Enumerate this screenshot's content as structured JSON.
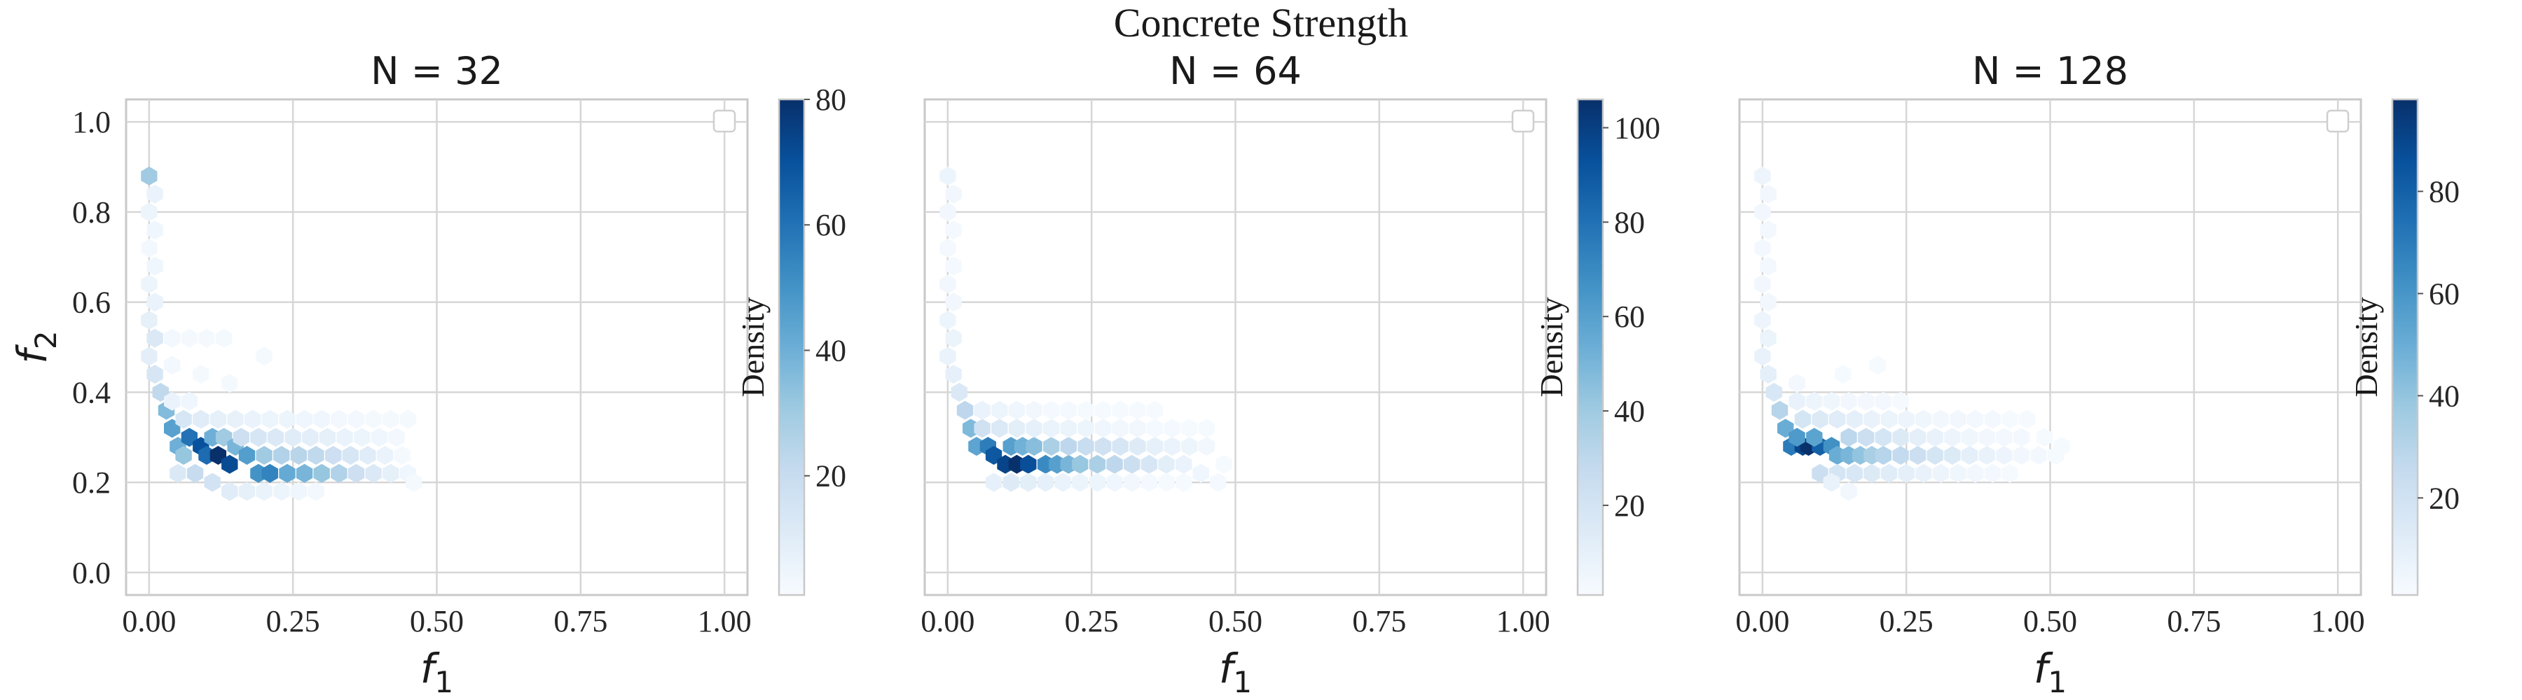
{
  "suptitle": "Concrete Strength",
  "colorbar_label": "Density",
  "x_axis": {
    "label": "f",
    "label_sub": "1"
  },
  "y_axis": {
    "label": "f",
    "label_sub": "2"
  },
  "colormap": "Blues",
  "colors": {
    "light": "#f7fbff",
    "dark": "#08306b",
    "grid": "#d6d6d6",
    "frame": "#c8c8c8"
  },
  "chart_data": [
    {
      "type": "heatmap",
      "subtype": "hexbin",
      "title": "N = 32",
      "xlim": [
        -0.04,
        1.04
      ],
      "ylim": [
        -0.05,
        1.05
      ],
      "xticks": [
        "0.00",
        "0.25",
        "0.50",
        "0.75",
        "1.00"
      ],
      "yticks": [
        "0.0",
        "0.2",
        "0.4",
        "0.6",
        "0.8",
        "1.0"
      ],
      "grid": true,
      "legend": "top-right (empty)",
      "colorbar": {
        "min": 1,
        "max": 80,
        "ticks": [
          "20",
          "40",
          "60",
          "80"
        ]
      },
      "points": [
        [
          0.0,
          0.88,
          30
        ],
        [
          0.01,
          0.84,
          6
        ],
        [
          0.0,
          0.8,
          5
        ],
        [
          0.01,
          0.76,
          4
        ],
        [
          0.0,
          0.72,
          3
        ],
        [
          0.01,
          0.68,
          4
        ],
        [
          0.0,
          0.64,
          5
        ],
        [
          0.01,
          0.6,
          6
        ],
        [
          0.0,
          0.56,
          8
        ],
        [
          0.01,
          0.52,
          12
        ],
        [
          0.0,
          0.48,
          9
        ],
        [
          0.01,
          0.44,
          14
        ],
        [
          0.02,
          0.4,
          22
        ],
        [
          0.03,
          0.36,
          36
        ],
        [
          0.04,
          0.32,
          45
        ],
        [
          0.05,
          0.28,
          40
        ],
        [
          0.06,
          0.26,
          32
        ],
        [
          0.07,
          0.3,
          60
        ],
        [
          0.09,
          0.28,
          70
        ],
        [
          0.1,
          0.26,
          62
        ],
        [
          0.12,
          0.26,
          80
        ],
        [
          0.14,
          0.24,
          72
        ],
        [
          0.11,
          0.3,
          40
        ],
        [
          0.13,
          0.3,
          30
        ],
        [
          0.15,
          0.28,
          38
        ],
        [
          0.17,
          0.26,
          46
        ],
        [
          0.19,
          0.22,
          50
        ],
        [
          0.21,
          0.22,
          55
        ],
        [
          0.24,
          0.22,
          42
        ],
        [
          0.27,
          0.22,
          38
        ],
        [
          0.3,
          0.22,
          32
        ],
        [
          0.33,
          0.22,
          26
        ],
        [
          0.36,
          0.22,
          18
        ],
        [
          0.39,
          0.22,
          12
        ],
        [
          0.42,
          0.22,
          8
        ],
        [
          0.45,
          0.22,
          4
        ],
        [
          0.2,
          0.26,
          30
        ],
        [
          0.23,
          0.26,
          26
        ],
        [
          0.26,
          0.26,
          24
        ],
        [
          0.29,
          0.26,
          22
        ],
        [
          0.32,
          0.26,
          18
        ],
        [
          0.35,
          0.26,
          14
        ],
        [
          0.38,
          0.26,
          10
        ],
        [
          0.41,
          0.26,
          6
        ],
        [
          0.16,
          0.3,
          18
        ],
        [
          0.19,
          0.3,
          14
        ],
        [
          0.22,
          0.3,
          12
        ],
        [
          0.25,
          0.3,
          10
        ],
        [
          0.28,
          0.3,
          9
        ],
        [
          0.31,
          0.3,
          8
        ],
        [
          0.34,
          0.3,
          6
        ],
        [
          0.37,
          0.3,
          5
        ],
        [
          0.4,
          0.3,
          4
        ],
        [
          0.43,
          0.3,
          3
        ],
        [
          0.06,
          0.34,
          14
        ],
        [
          0.09,
          0.34,
          10
        ],
        [
          0.12,
          0.34,
          8
        ],
        [
          0.15,
          0.34,
          7
        ],
        [
          0.18,
          0.34,
          6
        ],
        [
          0.21,
          0.34,
          5
        ],
        [
          0.24,
          0.34,
          5
        ],
        [
          0.27,
          0.34,
          4
        ],
        [
          0.3,
          0.34,
          4
        ],
        [
          0.33,
          0.34,
          3
        ],
        [
          0.36,
          0.34,
          3
        ],
        [
          0.39,
          0.34,
          2
        ],
        [
          0.42,
          0.34,
          2
        ],
        [
          0.45,
          0.34,
          2
        ],
        [
          0.05,
          0.22,
          12
        ],
        [
          0.08,
          0.22,
          20
        ],
        [
          0.11,
          0.2,
          16
        ],
        [
          0.14,
          0.18,
          10
        ],
        [
          0.17,
          0.18,
          8
        ],
        [
          0.2,
          0.18,
          6
        ],
        [
          0.23,
          0.18,
          5
        ],
        [
          0.26,
          0.18,
          4
        ],
        [
          0.29,
          0.18,
          3
        ],
        [
          0.04,
          0.38,
          6
        ],
        [
          0.07,
          0.38,
          4
        ],
        [
          0.04,
          0.46,
          3
        ],
        [
          0.04,
          0.52,
          3
        ],
        [
          0.07,
          0.52,
          2
        ],
        [
          0.1,
          0.52,
          2
        ],
        [
          0.13,
          0.52,
          2
        ],
        [
          0.2,
          0.48,
          2
        ],
        [
          0.09,
          0.44,
          2
        ],
        [
          0.14,
          0.42,
          2
        ],
        [
          0.46,
          0.2,
          2
        ],
        [
          0.44,
          0.26,
          2
        ]
      ]
    },
    {
      "type": "heatmap",
      "subtype": "hexbin",
      "title": "N = 64",
      "xlim": [
        -0.04,
        1.04
      ],
      "ylim": [
        -0.05,
        1.05
      ],
      "xticks": [
        "0.00",
        "0.25",
        "0.50",
        "0.75",
        "1.00"
      ],
      "yticks": [
        "0.0",
        "0.2",
        "0.4",
        "0.6",
        "0.8",
        "1.0"
      ],
      "grid": true,
      "legend": "top-right (empty)",
      "colorbar": {
        "min": 1,
        "max": 106,
        "ticks": [
          "20",
          "40",
          "60",
          "80",
          "100"
        ]
      },
      "points": [
        [
          0.0,
          0.88,
          6
        ],
        [
          0.01,
          0.84,
          4
        ],
        [
          0.0,
          0.8,
          4
        ],
        [
          0.01,
          0.76,
          3
        ],
        [
          0.0,
          0.72,
          3
        ],
        [
          0.01,
          0.68,
          3
        ],
        [
          0.0,
          0.64,
          4
        ],
        [
          0.01,
          0.6,
          4
        ],
        [
          0.0,
          0.56,
          6
        ],
        [
          0.01,
          0.52,
          7
        ],
        [
          0.0,
          0.48,
          8
        ],
        [
          0.01,
          0.44,
          10
        ],
        [
          0.02,
          0.4,
          16
        ],
        [
          0.03,
          0.36,
          30
        ],
        [
          0.04,
          0.32,
          48
        ],
        [
          0.05,
          0.28,
          58
        ],
        [
          0.07,
          0.28,
          75
        ],
        [
          0.08,
          0.26,
          90
        ],
        [
          0.1,
          0.24,
          98
        ],
        [
          0.12,
          0.24,
          106
        ],
        [
          0.14,
          0.24,
          94
        ],
        [
          0.11,
          0.28,
          60
        ],
        [
          0.13,
          0.28,
          52
        ],
        [
          0.15,
          0.28,
          46
        ],
        [
          0.17,
          0.24,
          70
        ],
        [
          0.19,
          0.24,
          60
        ],
        [
          0.21,
          0.24,
          50
        ],
        [
          0.23,
          0.24,
          42
        ],
        [
          0.26,
          0.24,
          36
        ],
        [
          0.29,
          0.24,
          30
        ],
        [
          0.32,
          0.24,
          24
        ],
        [
          0.35,
          0.24,
          18
        ],
        [
          0.38,
          0.24,
          12
        ],
        [
          0.41,
          0.24,
          8
        ],
        [
          0.44,
          0.22,
          5
        ],
        [
          0.47,
          0.2,
          3
        ],
        [
          0.18,
          0.28,
          36
        ],
        [
          0.21,
          0.28,
          30
        ],
        [
          0.24,
          0.28,
          26
        ],
        [
          0.27,
          0.28,
          22
        ],
        [
          0.3,
          0.28,
          18
        ],
        [
          0.33,
          0.28,
          14
        ],
        [
          0.36,
          0.28,
          10
        ],
        [
          0.39,
          0.28,
          8
        ],
        [
          0.42,
          0.28,
          6
        ],
        [
          0.45,
          0.28,
          4
        ],
        [
          0.06,
          0.32,
          22
        ],
        [
          0.09,
          0.32,
          16
        ],
        [
          0.12,
          0.32,
          12
        ],
        [
          0.15,
          0.32,
          10
        ],
        [
          0.18,
          0.32,
          8
        ],
        [
          0.21,
          0.32,
          7
        ],
        [
          0.24,
          0.32,
          6
        ],
        [
          0.27,
          0.32,
          5
        ],
        [
          0.3,
          0.32,
          4
        ],
        [
          0.33,
          0.32,
          4
        ],
        [
          0.36,
          0.32,
          3
        ],
        [
          0.39,
          0.32,
          3
        ],
        [
          0.42,
          0.32,
          2
        ],
        [
          0.45,
          0.32,
          2
        ],
        [
          0.08,
          0.2,
          10
        ],
        [
          0.11,
          0.2,
          14
        ],
        [
          0.14,
          0.2,
          12
        ],
        [
          0.17,
          0.2,
          10
        ],
        [
          0.2,
          0.2,
          8
        ],
        [
          0.23,
          0.2,
          7
        ],
        [
          0.26,
          0.2,
          6
        ],
        [
          0.29,
          0.2,
          5
        ],
        [
          0.32,
          0.2,
          4
        ],
        [
          0.35,
          0.2,
          3
        ],
        [
          0.38,
          0.2,
          2
        ],
        [
          0.41,
          0.2,
          2
        ],
        [
          0.06,
          0.36,
          8
        ],
        [
          0.09,
          0.36,
          6
        ],
        [
          0.12,
          0.36,
          5
        ],
        [
          0.15,
          0.36,
          4
        ],
        [
          0.18,
          0.36,
          3
        ],
        [
          0.21,
          0.36,
          3
        ],
        [
          0.24,
          0.36,
          2
        ],
        [
          0.27,
          0.36,
          2
        ],
        [
          0.3,
          0.36,
          2
        ],
        [
          0.33,
          0.36,
          2
        ],
        [
          0.36,
          0.36,
          2
        ],
        [
          0.48,
          0.24,
          2
        ]
      ]
    },
    {
      "type": "heatmap",
      "subtype": "hexbin",
      "title": "N = 128",
      "xlim": [
        -0.04,
        1.04
      ],
      "ylim": [
        -0.05,
        1.05
      ],
      "xticks": [
        "0.00",
        "0.25",
        "0.50",
        "0.75",
        "1.00"
      ],
      "yticks": [
        "0.0",
        "0.2",
        "0.4",
        "0.6",
        "0.8",
        "1.0"
      ],
      "grid": true,
      "legend": "top-right (empty)",
      "colorbar": {
        "min": 1,
        "max": 98,
        "ticks": [
          "20",
          "40",
          "60",
          "80"
        ]
      },
      "points": [
        [
          0.0,
          0.88,
          6
        ],
        [
          0.01,
          0.84,
          4
        ],
        [
          0.0,
          0.8,
          4
        ],
        [
          0.01,
          0.76,
          3
        ],
        [
          0.0,
          0.72,
          3
        ],
        [
          0.01,
          0.68,
          3
        ],
        [
          0.0,
          0.64,
          4
        ],
        [
          0.01,
          0.6,
          4
        ],
        [
          0.0,
          0.56,
          6
        ],
        [
          0.01,
          0.52,
          7
        ],
        [
          0.0,
          0.48,
          8
        ],
        [
          0.01,
          0.44,
          10
        ],
        [
          0.02,
          0.4,
          16
        ],
        [
          0.03,
          0.36,
          30
        ],
        [
          0.04,
          0.32,
          50
        ],
        [
          0.05,
          0.28,
          70
        ],
        [
          0.07,
          0.28,
          90
        ],
        [
          0.08,
          0.28,
          98
        ],
        [
          0.1,
          0.28,
          80
        ],
        [
          0.12,
          0.28,
          62
        ],
        [
          0.06,
          0.3,
          58
        ],
        [
          0.09,
          0.3,
          54
        ],
        [
          0.13,
          0.26,
          50
        ],
        [
          0.15,
          0.26,
          46
        ],
        [
          0.17,
          0.26,
          40
        ],
        [
          0.19,
          0.26,
          34
        ],
        [
          0.21,
          0.26,
          30
        ],
        [
          0.24,
          0.26,
          26
        ],
        [
          0.27,
          0.26,
          22
        ],
        [
          0.3,
          0.26,
          18
        ],
        [
          0.33,
          0.26,
          14
        ],
        [
          0.36,
          0.26,
          10
        ],
        [
          0.39,
          0.26,
          8
        ],
        [
          0.42,
          0.26,
          6
        ],
        [
          0.45,
          0.26,
          4
        ],
        [
          0.48,
          0.26,
          3
        ],
        [
          0.51,
          0.26,
          2
        ],
        [
          0.1,
          0.22,
          22
        ],
        [
          0.13,
          0.22,
          18
        ],
        [
          0.16,
          0.22,
          16
        ],
        [
          0.19,
          0.22,
          14
        ],
        [
          0.22,
          0.22,
          12
        ],
        [
          0.25,
          0.22,
          10
        ],
        [
          0.28,
          0.22,
          8
        ],
        [
          0.31,
          0.22,
          6
        ],
        [
          0.34,
          0.22,
          5
        ],
        [
          0.37,
          0.22,
          4
        ],
        [
          0.4,
          0.22,
          3
        ],
        [
          0.43,
          0.22,
          2
        ],
        [
          0.07,
          0.34,
          18
        ],
        [
          0.1,
          0.34,
          14
        ],
        [
          0.13,
          0.34,
          12
        ],
        [
          0.16,
          0.34,
          10
        ],
        [
          0.19,
          0.34,
          8
        ],
        [
          0.22,
          0.34,
          7
        ],
        [
          0.25,
          0.34,
          6
        ],
        [
          0.28,
          0.34,
          5
        ],
        [
          0.31,
          0.34,
          4
        ],
        [
          0.34,
          0.34,
          4
        ],
        [
          0.37,
          0.34,
          3
        ],
        [
          0.4,
          0.34,
          3
        ],
        [
          0.43,
          0.34,
          2
        ],
        [
          0.46,
          0.34,
          2
        ],
        [
          0.49,
          0.3,
          2
        ],
        [
          0.52,
          0.28,
          2
        ],
        [
          0.15,
          0.3,
          28
        ],
        [
          0.18,
          0.3,
          22
        ],
        [
          0.21,
          0.3,
          18
        ],
        [
          0.24,
          0.3,
          14
        ],
        [
          0.27,
          0.3,
          10
        ],
        [
          0.3,
          0.3,
          8
        ],
        [
          0.33,
          0.3,
          6
        ],
        [
          0.36,
          0.3,
          5
        ],
        [
          0.39,
          0.3,
          4
        ],
        [
          0.42,
          0.3,
          3
        ],
        [
          0.45,
          0.3,
          3
        ],
        [
          0.06,
          0.38,
          8
        ],
        [
          0.09,
          0.38,
          6
        ],
        [
          0.12,
          0.38,
          5
        ],
        [
          0.15,
          0.38,
          4
        ],
        [
          0.18,
          0.38,
          3
        ],
        [
          0.21,
          0.38,
          3
        ],
        [
          0.24,
          0.38,
          2
        ],
        [
          0.06,
          0.42,
          3
        ],
        [
          0.2,
          0.46,
          2
        ],
        [
          0.14,
          0.44,
          2
        ],
        [
          0.12,
          0.2,
          8
        ],
        [
          0.15,
          0.18,
          4
        ]
      ]
    }
  ]
}
